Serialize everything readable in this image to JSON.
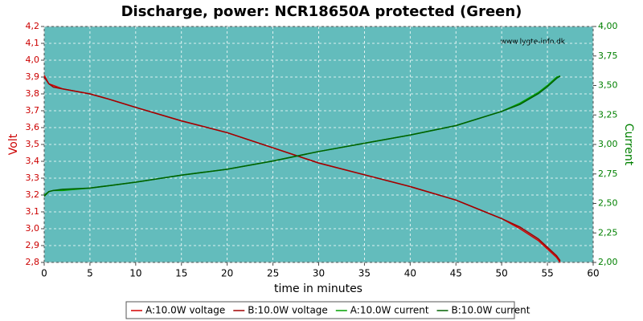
{
  "chart_data": {
    "type": "line",
    "title": "Discharge, power: NCR18650A protected (Green)",
    "watermark": "www.lygte-info.dk",
    "xlabel": "time in minutes",
    "ylabel": "Volt",
    "y2label": "Current",
    "x": [
      0,
      0.5,
      1,
      2,
      5,
      7,
      10,
      15,
      20,
      25,
      30,
      35,
      40,
      45,
      50,
      52,
      54,
      55,
      56,
      56.4
    ],
    "series": [
      {
        "name": "A:10.0W voltage",
        "color": "#d40000",
        "values": [
          3.91,
          3.86,
          3.85,
          3.83,
          3.8,
          3.77,
          3.72,
          3.64,
          3.57,
          3.48,
          3.39,
          3.32,
          3.25,
          3.17,
          3.06,
          3.0,
          2.93,
          2.88,
          2.83,
          2.8
        ]
      },
      {
        "name": "B:10.0W voltage",
        "color": "#a00000",
        "values": [
          3.9,
          3.86,
          3.84,
          3.83,
          3.8,
          3.77,
          3.72,
          3.64,
          3.57,
          3.48,
          3.39,
          3.32,
          3.25,
          3.17,
          3.06,
          3.01,
          2.94,
          2.89,
          2.84,
          2.81
        ]
      },
      {
        "name": "A:10.0W current",
        "color": "#00a000",
        "axis": "y2",
        "values": [
          2.57,
          2.6,
          2.61,
          2.61,
          2.63,
          2.65,
          2.68,
          2.74,
          2.79,
          2.86,
          2.94,
          3.01,
          3.08,
          3.16,
          3.28,
          3.35,
          3.44,
          3.5,
          3.57,
          3.58
        ]
      },
      {
        "name": "B:10.0W current",
        "color": "#006000",
        "axis": "y2",
        "values": [
          2.56,
          2.6,
          2.61,
          2.62,
          2.63,
          2.65,
          2.68,
          2.74,
          2.79,
          2.86,
          2.94,
          3.01,
          3.08,
          3.16,
          3.28,
          3.34,
          3.43,
          3.49,
          3.56,
          3.58
        ]
      }
    ],
    "xlim": [
      0,
      60
    ],
    "xticks": [
      0,
      5,
      10,
      15,
      20,
      25,
      30,
      35,
      40,
      45,
      50,
      55,
      60
    ],
    "ylim": [
      2.8,
      4.2
    ],
    "yticks": [
      {
        "value": 2.8,
        "label": "2,8"
      },
      {
        "value": 2.9,
        "label": "2,9"
      },
      {
        "value": 3.0,
        "label": "3,0"
      },
      {
        "value": 3.1,
        "label": "3,1"
      },
      {
        "value": 3.2,
        "label": "3,2"
      },
      {
        "value": 3.3,
        "label": "3,3"
      },
      {
        "value": 3.4,
        "label": "3,4"
      },
      {
        "value": 3.5,
        "label": "3,5"
      },
      {
        "value": 3.6,
        "label": "3,6"
      },
      {
        "value": 3.7,
        "label": "3,7"
      },
      {
        "value": 3.8,
        "label": "3,8"
      },
      {
        "value": 3.9,
        "label": "3,9"
      },
      {
        "value": 4.0,
        "label": "4,0"
      },
      {
        "value": 4.1,
        "label": "4,1"
      },
      {
        "value": 4.2,
        "label": "4,2"
      }
    ],
    "y2lim": [
      2.0,
      4.0
    ],
    "y2ticks": [
      {
        "value": 2.0,
        "label": "2,00"
      },
      {
        "value": 2.25,
        "label": "2,25"
      },
      {
        "value": 2.5,
        "label": "2,50"
      },
      {
        "value": 2.75,
        "label": "2,75"
      },
      {
        "value": 3.0,
        "label": "3,00"
      },
      {
        "value": 3.25,
        "label": "3,25"
      },
      {
        "value": 3.5,
        "label": "3,50"
      },
      {
        "value": 3.75,
        "label": "3,75"
      },
      {
        "value": 4.0,
        "label": "4,00"
      }
    ],
    "grid": true,
    "legend": "bottom"
  }
}
